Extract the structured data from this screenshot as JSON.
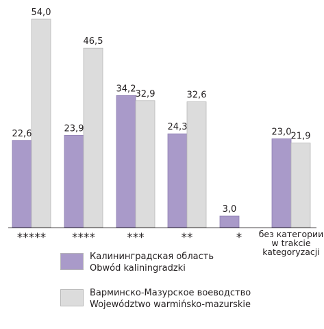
{
  "chart_data": {
    "type": "bar",
    "categories": [
      "*****",
      "****",
      "***",
      "**",
      "*",
      "без категории w trakcie kategoryzacji"
    ],
    "category_labels": [
      [
        "*****"
      ],
      [
        "****"
      ],
      [
        "***"
      ],
      [
        "**"
      ],
      [
        "*"
      ],
      [
        "без категории",
        "w trakcie",
        "kategoryzacji"
      ]
    ],
    "series": [
      {
        "name": "Калининградская область Obwód kaliningradzki",
        "legend_lines": [
          "Калининградская область",
          "Obwód kaliningradzki"
        ],
        "color": "#a99ac9",
        "values": [
          22.6,
          23.9,
          34.2,
          24.3,
          3.0,
          23.0
        ],
        "labels": [
          "22,6",
          "23,9",
          "34,2",
          "24,3",
          "3,0",
          "23,0"
        ]
      },
      {
        "name": "Варминско-Мазурское воеводство Województwo warmińsko-mazurskie",
        "legend_lines": [
          "Варминско-Мазурское воеводство",
          "Województwo warmińsko-mazurskie"
        ],
        "color": "#dcdcdc",
        "values": [
          54.0,
          46.5,
          32.9,
          32.6,
          null,
          21.9
        ],
        "labels": [
          "54,0",
          "46,5",
          "32,9",
          "32,6",
          "",
          "21,9"
        ]
      }
    ],
    "ylim": [
      0,
      57
    ],
    "grid": false,
    "legend_position": "bottom"
  }
}
